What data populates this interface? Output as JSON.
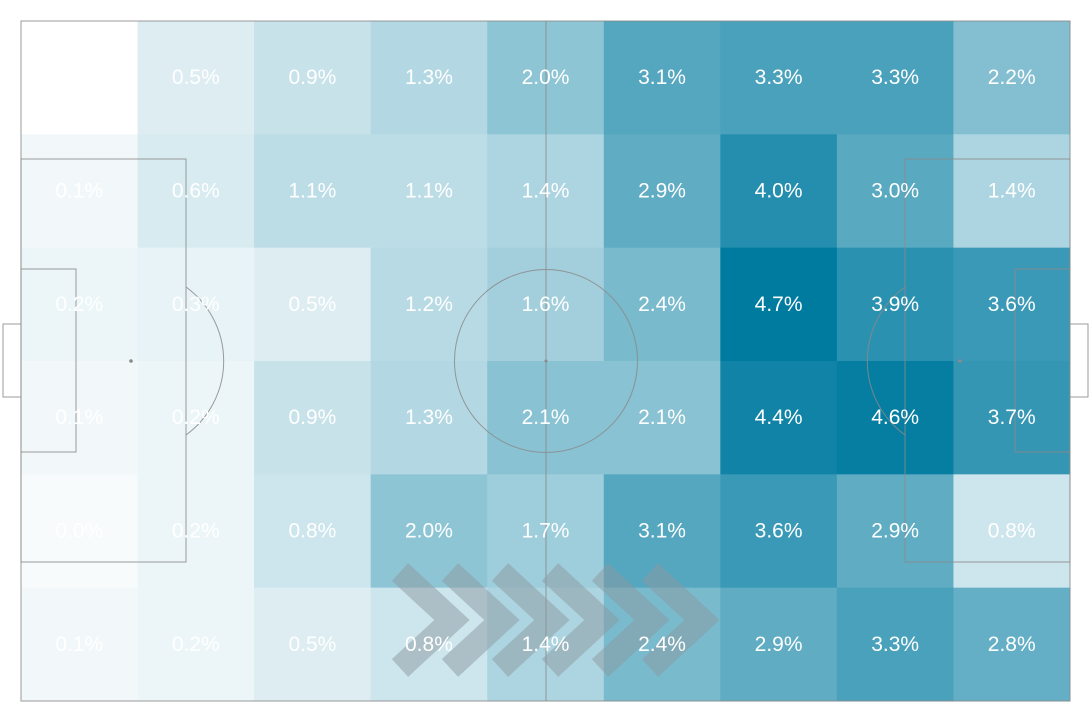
{
  "chart_data": {
    "type": "heatmap",
    "title": "",
    "xlabel": "",
    "ylabel": "",
    "rows": 6,
    "cols": 9,
    "unit": "%",
    "values": [
      [
        null,
        0.5,
        0.9,
        1.3,
        2.0,
        3.1,
        3.3,
        3.3,
        2.2
      ],
      [
        0.1,
        0.6,
        1.1,
        1.1,
        1.4,
        2.9,
        4.0,
        3.0,
        1.4
      ],
      [
        0.2,
        0.3,
        0.5,
        1.2,
        1.6,
        2.4,
        4.7,
        3.9,
        3.6
      ],
      [
        0.1,
        0.2,
        0.9,
        1.3,
        2.1,
        2.1,
        4.4,
        4.6,
        3.7
      ],
      [
        0.0,
        0.2,
        0.8,
        2.0,
        1.7,
        3.1,
        3.6,
        2.9,
        0.8
      ],
      [
        0.1,
        0.2,
        0.5,
        0.8,
        1.4,
        2.4,
        2.9,
        3.3,
        2.8
      ]
    ],
    "labels": [
      [
        "",
        "0.5%",
        "0.9%",
        "1.3%",
        "2.0%",
        "3.1%",
        "3.3%",
        "3.3%",
        "2.2%"
      ],
      [
        "0.1%",
        "0.6%",
        "1.1%",
        "1.1%",
        "1.4%",
        "2.9%",
        "4.0%",
        "3.0%",
        "1.4%"
      ],
      [
        "0.2%",
        "0.3%",
        "0.5%",
        "1.2%",
        "1.6%",
        "2.4%",
        "4.7%",
        "3.9%",
        "3.6%"
      ],
      [
        "0.1%",
        "0.2%",
        "0.9%",
        "1.3%",
        "2.1%",
        "2.1%",
        "4.4%",
        "4.6%",
        "3.7%"
      ],
      [
        "0.0%",
        "0.2%",
        "0.8%",
        "2.0%",
        "1.7%",
        "3.1%",
        "3.6%",
        "2.9%",
        "0.8%"
      ],
      [
        "0.1%",
        "0.2%",
        "0.5%",
        "0.8%",
        "1.4%",
        "2.4%",
        "2.9%",
        "3.3%",
        "2.8%"
      ]
    ],
    "colorscale": {
      "low": "#f7fbfc",
      "high": "#007ba0",
      "min": 0,
      "max": 4.7
    },
    "background": "pitch",
    "attack_direction": "right",
    "grid": false,
    "legend": "none"
  },
  "colors": {
    "pitch_lines": "#8a8a8a",
    "label_text": "#ffffff",
    "direction_arrows": "#8c9aa0"
  },
  "icons": {
    "direction": "chevron-right-icon"
  }
}
